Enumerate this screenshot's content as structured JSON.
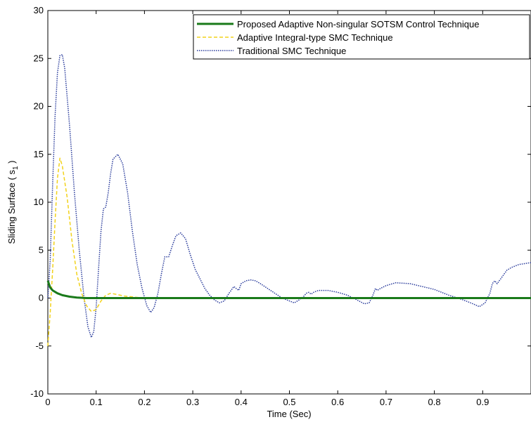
{
  "chart_data": {
    "type": "line",
    "xlabel": "Time (Sec)",
    "ylabel": "Sliding Surface ( s",
    "ylabel_subscript": "1",
    "ylabel_suffix": " )",
    "xlim": [
      0,
      1
    ],
    "ylim": [
      -10,
      30
    ],
    "xticks": [
      0,
      0.1,
      0.2,
      0.3,
      0.4,
      0.5,
      0.6,
      0.7,
      0.8,
      0.9
    ],
    "xtick_labels": [
      "0",
      "0.1",
      "0.2",
      "0.3",
      "0.4",
      "0.5",
      "0.6",
      "0.7",
      "0.8",
      "0.9"
    ],
    "yticks": [
      -10,
      -5,
      0,
      5,
      10,
      15,
      20,
      25,
      30
    ],
    "ytick_labels": [
      "-10",
      "-5",
      "0",
      "5",
      "10",
      "15",
      "20",
      "25",
      "30"
    ],
    "grid": false,
    "legend_position": "top-right",
    "series": [
      {
        "name": "Proposed Adaptive Non-singular SOTSM Control Technique",
        "color": "#1a7a1a",
        "style": "solid",
        "points": [
          [
            0,
            1.8
          ],
          [
            0.005,
            1.1
          ],
          [
            0.01,
            0.8
          ],
          [
            0.02,
            0.5
          ],
          [
            0.03,
            0.3
          ],
          [
            0.045,
            0.15
          ],
          [
            0.06,
            0.05
          ],
          [
            0.08,
            0.0
          ],
          [
            1.0,
            0.0
          ]
        ]
      },
      {
        "name": "Adaptive Integral-type SMC Technique",
        "color": "#f2d21b",
        "style": "dashed",
        "points": [
          [
            0,
            -5.0
          ],
          [
            0.005,
            -1.5
          ],
          [
            0.01,
            3.0
          ],
          [
            0.015,
            8.0
          ],
          [
            0.02,
            12.5
          ],
          [
            0.025,
            14.6
          ],
          [
            0.03,
            13.8
          ],
          [
            0.04,
            10.5
          ],
          [
            0.05,
            6.0
          ],
          [
            0.06,
            2.5
          ],
          [
            0.07,
            0.5
          ],
          [
            0.08,
            -0.8
          ],
          [
            0.09,
            -1.4
          ],
          [
            0.1,
            -1.2
          ],
          [
            0.11,
            -0.3
          ],
          [
            0.12,
            0.3
          ],
          [
            0.13,
            0.5
          ],
          [
            0.14,
            0.4
          ],
          [
            0.16,
            0.2
          ],
          [
            0.2,
            0.0
          ],
          [
            1.0,
            -0.05
          ]
        ]
      },
      {
        "name": "Traditional SMC Technique",
        "color": "#2a3c9c",
        "style": "dotted",
        "points": [
          [
            0,
            0
          ],
          [
            0.005,
            4
          ],
          [
            0.01,
            12
          ],
          [
            0.015,
            19
          ],
          [
            0.02,
            23.5
          ],
          [
            0.025,
            25.3
          ],
          [
            0.03,
            25.4
          ],
          [
            0.035,
            24
          ],
          [
            0.045,
            18
          ],
          [
            0.055,
            11
          ],
          [
            0.065,
            5
          ],
          [
            0.075,
            0
          ],
          [
            0.083,
            -3
          ],
          [
            0.09,
            -4.1
          ],
          [
            0.095,
            -3.5
          ],
          [
            0.1,
            -1.0
          ],
          [
            0.105,
            3
          ],
          [
            0.11,
            7
          ],
          [
            0.115,
            9.3
          ],
          [
            0.12,
            9.5
          ],
          [
            0.125,
            11
          ],
          [
            0.13,
            13
          ],
          [
            0.135,
            14.5
          ],
          [
            0.145,
            15
          ],
          [
            0.155,
            14
          ],
          [
            0.165,
            11
          ],
          [
            0.175,
            7
          ],
          [
            0.185,
            3.5
          ],
          [
            0.195,
            1
          ],
          [
            0.205,
            -0.8
          ],
          [
            0.213,
            -1.5
          ],
          [
            0.22,
            -1
          ],
          [
            0.228,
            0.5
          ],
          [
            0.235,
            2.5
          ],
          [
            0.242,
            4.3
          ],
          [
            0.25,
            4.3
          ],
          [
            0.258,
            5.5
          ],
          [
            0.265,
            6.5
          ],
          [
            0.275,
            6.8
          ],
          [
            0.285,
            6.2
          ],
          [
            0.295,
            4.5
          ],
          [
            0.305,
            3
          ],
          [
            0.315,
            2
          ],
          [
            0.325,
            1
          ],
          [
            0.335,
            0.3
          ],
          [
            0.345,
            -0.2
          ],
          [
            0.355,
            -0.5
          ],
          [
            0.365,
            -0.3
          ],
          [
            0.375,
            0.5
          ],
          [
            0.385,
            1.2
          ],
          [
            0.39,
            1
          ],
          [
            0.395,
            0.8
          ],
          [
            0.4,
            1.5
          ],
          [
            0.41,
            1.8
          ],
          [
            0.42,
            1.9
          ],
          [
            0.43,
            1.8
          ],
          [
            0.44,
            1.5
          ],
          [
            0.455,
            1.0
          ],
          [
            0.47,
            0.5
          ],
          [
            0.485,
            0
          ],
          [
            0.5,
            -0.3
          ],
          [
            0.51,
            -0.5
          ],
          [
            0.52,
            -0.2
          ],
          [
            0.53,
            0.2
          ],
          [
            0.535,
            0.5
          ],
          [
            0.54,
            0.6
          ],
          [
            0.545,
            0.4
          ],
          [
            0.55,
            0.6
          ],
          [
            0.56,
            0.8
          ],
          [
            0.58,
            0.8
          ],
          [
            0.6,
            0.6
          ],
          [
            0.62,
            0.3
          ],
          [
            0.64,
            -0.2
          ],
          [
            0.655,
            -0.6
          ],
          [
            0.665,
            -0.5
          ],
          [
            0.672,
            0.2
          ],
          [
            0.678,
            1.0
          ],
          [
            0.682,
            0.8
          ],
          [
            0.688,
            1.0
          ],
          [
            0.7,
            1.3
          ],
          [
            0.72,
            1.6
          ],
          [
            0.75,
            1.5
          ],
          [
            0.8,
            0.9
          ],
          [
            0.83,
            0.3
          ],
          [
            0.86,
            -0.2
          ],
          [
            0.88,
            -0.6
          ],
          [
            0.893,
            -0.9
          ],
          [
            0.905,
            -0.5
          ],
          [
            0.915,
            0.5
          ],
          [
            0.92,
            1.5
          ],
          [
            0.925,
            1.8
          ],
          [
            0.93,
            1.5
          ],
          [
            0.94,
            2.2
          ],
          [
            0.95,
            2.9
          ],
          [
            0.96,
            3.2
          ],
          [
            0.975,
            3.5
          ],
          [
            1.0,
            3.7
          ]
        ]
      }
    ]
  }
}
